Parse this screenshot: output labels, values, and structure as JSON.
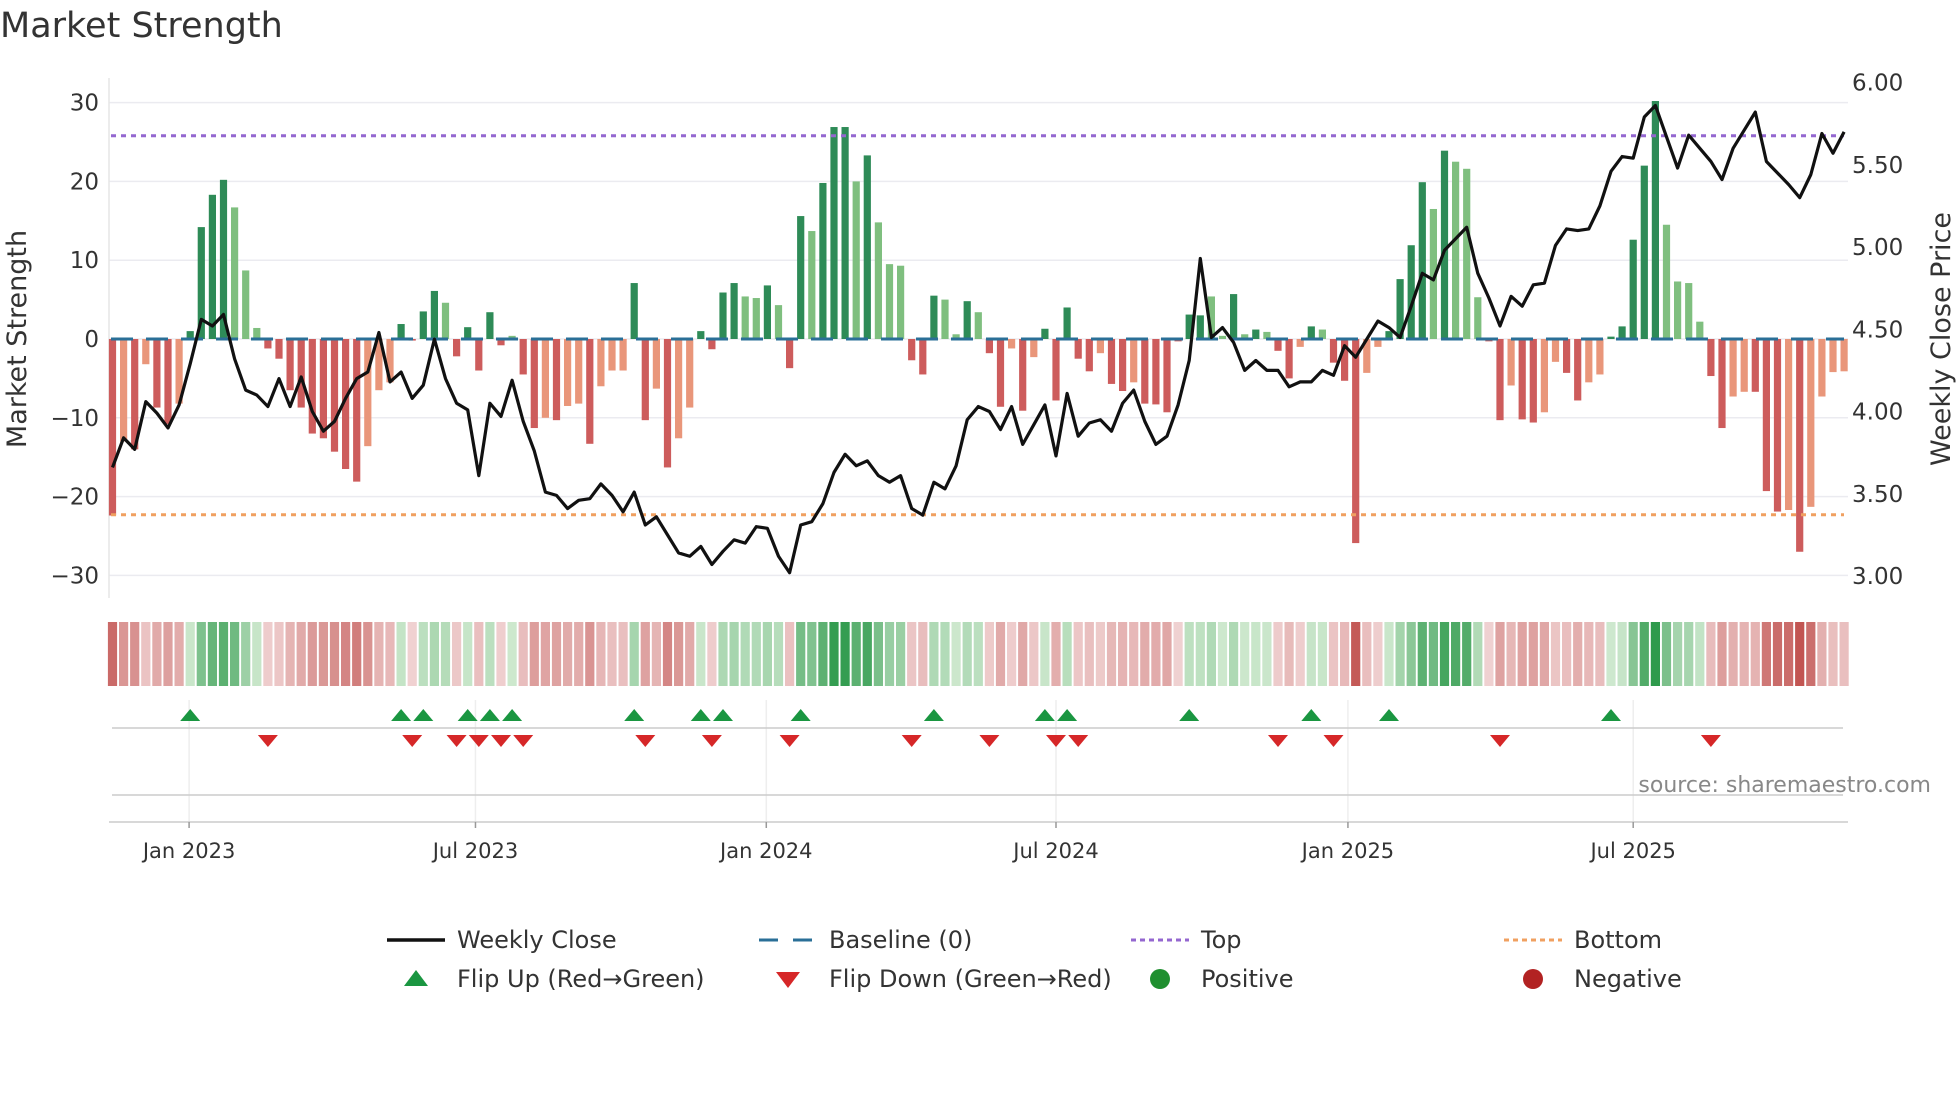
{
  "title": "Market Strength",
  "source": "source: sharemaestro.com",
  "colors": {
    "pos_strong": "#2e8b57",
    "pos_weak": "#7fbf7f",
    "neg_strong": "#cd5c5c",
    "neg_weak": "#e9967a",
    "line": "#111111",
    "baseline": "#2a6f97",
    "top": "#9467d0",
    "bottom": "#f0a060",
    "flip_up": "#1a9641",
    "flip_down": "#d62728",
    "positive": "#1f8f2f",
    "negative": "#b22222"
  },
  "chart_data": {
    "type": "bar",
    "title": "Market Strength",
    "ylabel": "Market Strength",
    "y2label": "Weekly Close Price",
    "ylim": [
      -33,
      33
    ],
    "y2lim": [
      2.85,
      6.1
    ],
    "yticks": [
      "30",
      "20",
      "10",
      "0",
      "−10",
      "−20",
      "−30"
    ],
    "ytick_values": [
      30,
      20,
      10,
      0,
      -10,
      -20,
      -30
    ],
    "y2ticks": [
      "6.00",
      "5.50",
      "5.00",
      "4.50",
      "4.00",
      "3.50",
      "3.00"
    ],
    "y2tick_values": [
      6.0,
      5.5,
      5.0,
      4.5,
      4.0,
      3.5,
      3.0
    ],
    "xticks": [
      {
        "label": "Jan 2023",
        "week_index": 6.9
      },
      {
        "label": "Jul 2023",
        "week_index": 32.7
      },
      {
        "label": "Jan 2024",
        "week_index": 58.9
      },
      {
        "label": "Jul 2024",
        "week_index": 85.0
      },
      {
        "label": "Jan 2025",
        "week_index": 111.3
      },
      {
        "label": "Jul 2025",
        "week_index": 137.0
      }
    ],
    "top_level": 25.8,
    "bottom_level": -22.3,
    "baseline": 0,
    "strength": [
      -22.4,
      -13,
      -14,
      -3.2,
      -8.7,
      -10.8,
      -8.2,
      1,
      14.2,
      18.3,
      20.2,
      16.7,
      8.7,
      1.4,
      -1.2,
      -2.5,
      -6.5,
      -8.7,
      -12,
      -12.6,
      -14.3,
      -16.5,
      -18.1,
      -13.6,
      -6.5,
      -5.5,
      1.9,
      -0.2,
      3.5,
      6.1,
      4.6,
      -2.2,
      1.5,
      -4,
      3.4,
      -0.8,
      0.4,
      -4.5,
      -11.3,
      -10,
      -10.3,
      -8.5,
      -8.2,
      -13.3,
      -6,
      -4,
      -4,
      7.1,
      -10.3,
      -6.3,
      -16.3,
      -12.6,
      -8.7,
      1,
      -1.3,
      5.9,
      7.1,
      5.4,
      5.2,
      6.8,
      4.3,
      -3.7,
      15.6,
      13.7,
      19.8,
      26.9,
      26.9,
      20,
      23.3,
      14.8,
      9.5,
      9.3,
      -2.7,
      -4.5,
      5.5,
      5,
      0.6,
      4.8,
      3.4,
      -1.8,
      -8.6,
      -1.2,
      -9.1,
      -2.3,
      1.3,
      -7.8,
      4,
      -2.5,
      -4.1,
      -1.8,
      -5.7,
      -6.6,
      -5.5,
      -8.2,
      -8.3,
      -9.3,
      -0.3,
      3.1,
      3,
      5.4,
      0.4,
      5.7,
      0.6,
      1.2,
      0.9,
      -1.5,
      -5,
      -1,
      1.6,
      1.2,
      -3,
      -5.3,
      -25.9,
      -4.3,
      -1,
      1,
      7.6,
      11.9,
      19.9,
      16.5,
      23.9,
      22.5,
      21.6,
      5.3,
      -0.3,
      -10.3,
      -5.9,
      -10.2,
      -10.6,
      -9.3,
      -2.9,
      -4.3,
      -7.8,
      -5.5,
      -4.5,
      0.3,
      1.6,
      12.6,
      22,
      30.2,
      14.5,
      7.3,
      7.1,
      2.2,
      -4.7,
      -11.3,
      -7.3,
      -6.7,
      -6.7,
      -19.3,
      -21.9,
      -21.7,
      -27,
      -21.3,
      -7.3,
      -4.2,
      -4.1
    ],
    "shade": "DLDLDDLDDDDLLLDDDDDDDDDLLLDDDDLDDDDDLDDLDLLDLLLDDLDLLDDDDLLDLDDLDDDLDLLLDDDLLDLDDLDLDDDDDLDDLDDDDDDLLDLDLDDLDLDDDLLDDDDLDLLLDDLDDLLDDLLDDDDDLLLLDDLLDDDLDLLLL",
    "weekly_close": [
      3.66,
      3.84,
      3.77,
      4.06,
      3.99,
      3.9,
      4.04,
      4.29,
      4.56,
      4.52,
      4.59,
      4.32,
      4.13,
      4.1,
      4.03,
      4.2,
      4.03,
      4.21,
      4.0,
      3.88,
      3.94,
      4.08,
      4.2,
      4.24,
      4.48,
      4.18,
      4.24,
      4.08,
      4.16,
      4.44,
      4.2,
      4.05,
      4.01,
      3.61,
      4.05,
      3.97,
      4.19,
      3.94,
      3.76,
      3.51,
      3.49,
      3.41,
      3.46,
      3.47,
      3.56,
      3.49,
      3.39,
      3.51,
      3.31,
      3.36,
      3.25,
      3.14,
      3.12,
      3.18,
      3.07,
      3.15,
      3.22,
      3.2,
      3.3,
      3.29,
      3.12,
      3.02,
      3.31,
      3.33,
      3.44,
      3.63,
      3.74,
      3.67,
      3.7,
      3.61,
      3.57,
      3.61,
      3.41,
      3.37,
      3.57,
      3.53,
      3.67,
      3.95,
      4.03,
      4.0,
      3.89,
      4.03,
      3.8,
      3.92,
      4.04,
      3.73,
      4.11,
      3.85,
      3.93,
      3.95,
      3.88,
      4.05,
      4.13,
      3.94,
      3.8,
      3.85,
      4.04,
      4.31,
      4.93,
      4.45,
      4.51,
      4.42,
      4.25,
      4.31,
      4.25,
      4.25,
      4.15,
      4.18,
      4.18,
      4.25,
      4.22,
      4.4,
      4.33,
      4.44,
      4.55,
      4.51,
      4.45,
      4.64,
      4.84,
      4.8,
      4.98,
      5.05,
      5.12,
      4.84,
      4.69,
      4.52,
      4.7,
      4.64,
      4.77,
      4.78,
      5.01,
      5.11,
      5.1,
      5.11,
      5.25,
      5.46,
      5.55,
      5.54,
      5.79,
      5.86,
      5.67,
      5.48,
      5.68,
      5.6,
      5.52,
      5.41,
      5.6,
      5.71,
      5.82,
      5.52,
      5.45,
      5.38,
      5.3,
      5.44,
      5.69,
      5.57,
      5.7
    ],
    "flip_up_weeks": [
      7,
      26,
      28,
      32,
      34,
      36,
      47,
      53,
      55,
      62,
      74,
      84,
      86,
      97,
      108,
      115,
      135
    ],
    "flip_down_weeks": [
      14,
      27,
      31,
      33,
      35,
      37,
      48,
      54,
      61,
      72,
      79,
      85,
      87,
      105,
      110,
      125,
      144
    ],
    "legend": [
      {
        "label": "Weekly Close",
        "kind": "line"
      },
      {
        "label": "Baseline (0)",
        "kind": "dash"
      },
      {
        "label": "Top",
        "kind": "dot-purple"
      },
      {
        "label": "Bottom",
        "kind": "dot-orange"
      },
      {
        "label": "Flip Up (Red→Green)",
        "kind": "tri-up"
      },
      {
        "label": "Flip Down (Green→Red)",
        "kind": "tri-down"
      },
      {
        "label": "Positive",
        "kind": "circle-green"
      },
      {
        "label": "Negative",
        "kind": "circle-red"
      }
    ],
    "legend_position": "bottom"
  }
}
